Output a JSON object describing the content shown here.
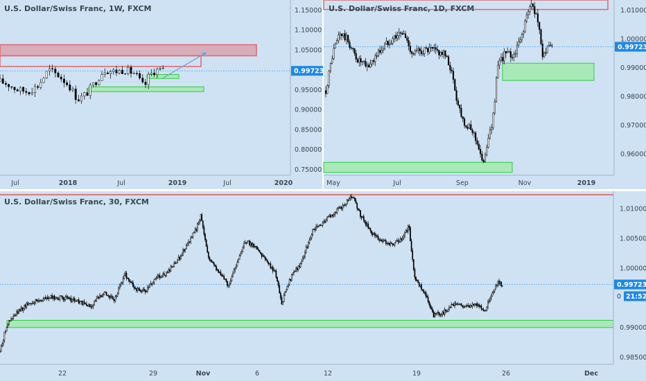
{
  "colors": {
    "bg": "#cfe2f3",
    "divider": "#ffffff",
    "axis_border": "#9fb3c8",
    "candle": "#000000",
    "price_line": "#2196f3",
    "price_tag": "#1e88e5",
    "resistance_fill": "#e06c75",
    "support_fill": "#90ee90",
    "support_border": "#2ecc40",
    "red_line": "#e53935",
    "arrow": "#6aa0d8"
  },
  "current_price": "0.99723",
  "chart_data": [
    {
      "type": "candlestick",
      "title": "U.S. Dollar/Swiss Franc, 1W, FXCM",
      "x_ticks": [
        "Jul",
        "2018",
        "Jul",
        "2019",
        "Jul",
        "2020"
      ],
      "y_ticks": [
        "1.15000",
        "1.10000",
        "1.05000",
        "1.00000",
        "0.95000",
        "0.90000",
        "0.85000",
        "0.80000",
        "0.75000"
      ],
      "ylim": [
        0.735,
        1.175
      ],
      "price_points": [
        [
          0,
          0.97
        ],
        [
          10,
          0.965
        ],
        [
          25,
          0.95
        ],
        [
          40,
          0.945
        ],
        [
          55,
          0.96
        ],
        [
          70,
          1.0
        ],
        [
          85,
          0.985
        ],
        [
          100,
          0.96
        ],
        [
          112,
          0.925
        ],
        [
          125,
          0.94
        ],
        [
          140,
          0.975
        ],
        [
          150,
          1.0
        ],
        [
          165,
          0.995
        ],
        [
          180,
          1.0
        ],
        [
          195,
          0.99
        ],
        [
          208,
          0.955
        ],
        [
          215,
          0.985
        ],
        [
          225,
          1.0
        ],
        [
          235,
          0.997
        ]
      ],
      "zones": [
        {
          "kind": "resistance",
          "y1": 1.0627,
          "y2": 1.035,
          "x1": 0,
          "x2": 370
        },
        {
          "kind": "resistance-outline",
          "y1": 1.035,
          "y2": 1.008,
          "x1": 0,
          "x2": 290
        },
        {
          "kind": "support",
          "y1": 0.988,
          "y2": 0.978,
          "x1": 212,
          "x2": 258
        },
        {
          "kind": "support",
          "y1": 0.957,
          "y2": 0.945,
          "x1": 128,
          "x2": 294
        }
      ],
      "arrow": {
        "from": [
          235,
          0.979
        ],
        "to": [
          297,
          1.0425
        ]
      },
      "current_price": 0.99723
    },
    {
      "type": "candlestick",
      "title": "U.S. Dollar/Swiss Franc, 1D, FXCM",
      "x_ticks": [
        "May",
        "Jul",
        "Sep",
        "Nov",
        "2019"
      ],
      "y_ticks": [
        "1.01000",
        "1.00000",
        "0.99000",
        "0.98000",
        "0.97000",
        "0.96000"
      ],
      "ylim": [
        0.9525,
        1.0135
      ],
      "price_points": [
        [
          0,
          0.982
        ],
        [
          10,
          0.995
        ],
        [
          20,
          1.002
        ],
        [
          30,
          1.0
        ],
        [
          45,
          0.993
        ],
        [
          60,
          0.99
        ],
        [
          75,
          0.995
        ],
        [
          90,
          0.999
        ],
        [
          100,
          1.001
        ],
        [
          112,
          1.002
        ],
        [
          125,
          0.995
        ],
        [
          140,
          0.996
        ],
        [
          155,
          0.996
        ],
        [
          170,
          0.995
        ],
        [
          180,
          0.99
        ],
        [
          190,
          0.978
        ],
        [
          198,
          0.972
        ],
        [
          205,
          0.969
        ],
        [
          212,
          0.968
        ],
        [
          220,
          0.963
        ],
        [
          226,
          0.956
        ],
        [
          232,
          0.963
        ],
        [
          240,
          0.97
        ],
        [
          248,
          0.99
        ],
        [
          258,
          0.995
        ],
        [
          270,
          0.994
        ],
        [
          280,
          0.999
        ],
        [
          290,
          1.008
        ],
        [
          297,
          1.012
        ],
        [
          305,
          1.008
        ],
        [
          312,
          0.995
        ],
        [
          320,
          0.996
        ],
        [
          327,
          0.998
        ]
      ],
      "zones": [
        {
          "kind": "resistance-outline",
          "y1": 1.0135,
          "y2": 1.0102,
          "x1": 0,
          "x2": 410
        },
        {
          "kind": "support",
          "y1": 0.9915,
          "y2": 0.9855,
          "x1": 258,
          "x2": 390
        },
        {
          "kind": "support",
          "y1": 0.957,
          "y2": 0.9535,
          "x1": 0,
          "x2": 272
        }
      ],
      "current_price": 0.99723
    },
    {
      "type": "candlestick",
      "title": "U.S. Dollar/Swiss Franc, 30, FXCM",
      "x_ticks": [
        "22",
        "29",
        "Nov",
        "6",
        "12",
        "19",
        "26",
        "Dec"
      ],
      "y_ticks": [
        "1.01000",
        "1.00500",
        "1.00000",
        "0.99000",
        "0.98500"
      ],
      "ylim": [
        0.9838,
        1.0129
      ],
      "price_points": [
        [
          0,
          0.986
        ],
        [
          10,
          0.9905
        ],
        [
          25,
          0.9925
        ],
        [
          40,
          0.994
        ],
        [
          55,
          0.9945
        ],
        [
          70,
          0.995
        ],
        [
          90,
          0.995
        ],
        [
          110,
          0.9945
        ],
        [
          130,
          0.9935
        ],
        [
          150,
          0.996
        ],
        [
          165,
          0.9945
        ],
        [
          180,
          0.999
        ],
        [
          195,
          0.9965
        ],
        [
          210,
          0.996
        ],
        [
          225,
          0.9985
        ],
        [
          240,
          0.999
        ],
        [
          255,
          1.001
        ],
        [
          270,
          1.004
        ],
        [
          283,
          1.0065
        ],
        [
          290,
          1.009
        ],
        [
          300,
          1.002
        ],
        [
          315,
          0.9995
        ],
        [
          330,
          0.997
        ],
        [
          345,
          1.002
        ],
        [
          355,
          1.0045
        ],
        [
          370,
          1.0035
        ],
        [
          385,
          1.001
        ],
        [
          398,
          0.999
        ],
        [
          406,
          0.994
        ],
        [
          420,
          0.9985
        ],
        [
          435,
          1.001
        ],
        [
          450,
          1.006
        ],
        [
          465,
          1.0075
        ],
        [
          480,
          1.009
        ],
        [
          495,
          1.0105
        ],
        [
          508,
          1.012
        ],
        [
          520,
          1.009
        ],
        [
          535,
          1.006
        ],
        [
          550,
          1.0045
        ],
        [
          565,
          1.004
        ],
        [
          580,
          1.005
        ],
        [
          590,
          1.007
        ],
        [
          598,
          0.9985
        ],
        [
          612,
          0.996
        ],
        [
          625,
          0.992
        ],
        [
          640,
          0.9925
        ],
        [
          655,
          0.994
        ],
        [
          670,
          0.9935
        ],
        [
          685,
          0.994
        ],
        [
          700,
          0.993
        ],
        [
          712,
          0.996
        ],
        [
          718,
          0.9975
        ],
        [
          725,
          0.9972
        ]
      ],
      "zones": [
        {
          "kind": "red-line",
          "y": 1.0123
        },
        {
          "kind": "support",
          "y1": 0.9912,
          "y2": 0.99,
          "x1": 10,
          "x2": 885
        }
      ],
      "current_price": 0.99723,
      "time_tag": "21:52",
      "extra_tick": "0"
    }
  ]
}
